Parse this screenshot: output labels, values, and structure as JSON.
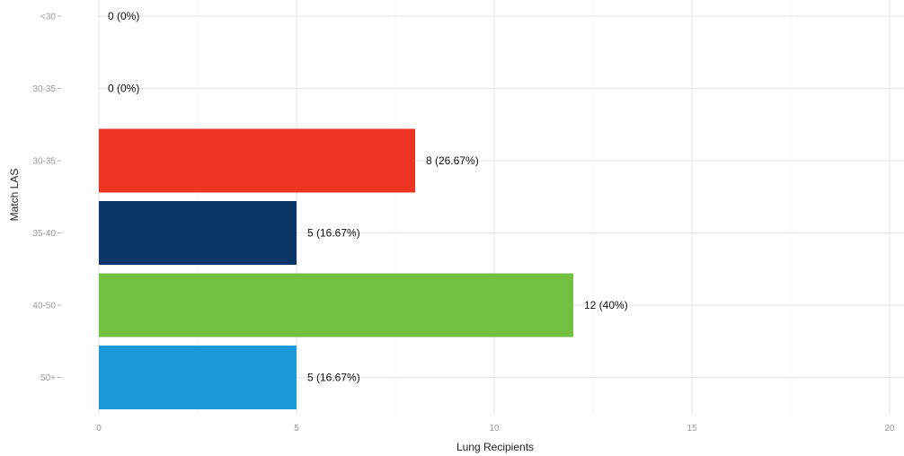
{
  "chart_data": {
    "type": "bar",
    "orientation": "horizontal",
    "xlabel": "Lung Recipients",
    "ylabel": "Match LAS",
    "categories": [
      "<30",
      "30-35 (upper)",
      "30-35",
      "35-40",
      "40-50",
      "50+"
    ],
    "category_labels": [
      "<30",
      "30-35",
      "30-35",
      "35-40",
      "40-50",
      "50+"
    ],
    "values": [
      0,
      0,
      8,
      5,
      12,
      5
    ],
    "data_labels": [
      "0 (0%)",
      "0 (0%)",
      "8 (26.67%)",
      "5 (16.67%)",
      "12 (40%)",
      "5 (16.67%)"
    ],
    "colors": [
      "#f8766d",
      "#f8766d",
      "#ee3524",
      "#0c3567",
      "#74c043",
      "#1b98d7"
    ],
    "xlim": [
      0,
      20
    ],
    "xticks": [
      0,
      5,
      10,
      15,
      20
    ],
    "grid": true,
    "legend": "none"
  }
}
